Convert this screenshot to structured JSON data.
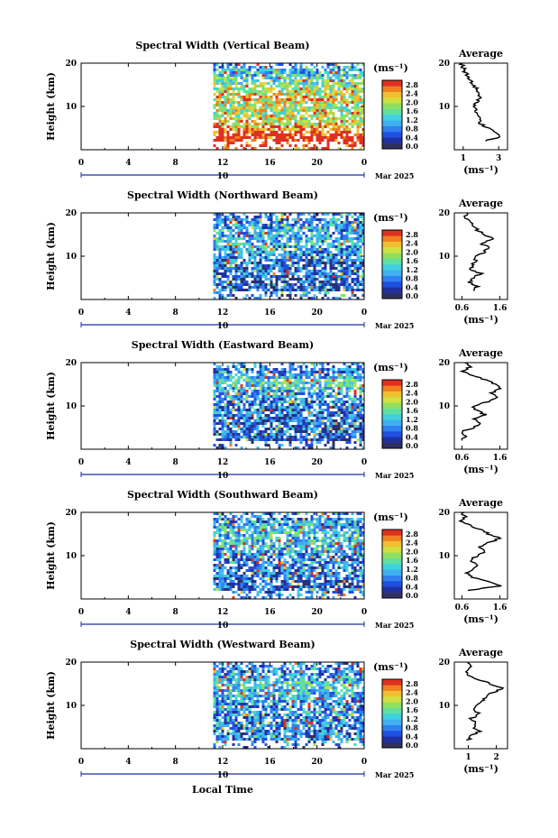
{
  "figure": {
    "xlabel": "Local Time",
    "date_label": "Mar 2025",
    "x_ticks": [
      "0",
      "4",
      "8",
      "12",
      "16",
      "20",
      "0"
    ],
    "day_marker": "10",
    "ylabel": "Height (km)",
    "y_ticks": [
      "10",
      "20"
    ],
    "unit": "(ms⁻¹)",
    "colorbar_ticks": [
      "0.0",
      "0.4",
      "0.8",
      "1.2",
      "1.6",
      "2.0",
      "2.4",
      "2.8"
    ],
    "avg_title": "Average",
    "avg_unit": "(ms⁻¹)"
  },
  "colors": [
    "#303060",
    "#2030a0",
    "#2050e0",
    "#3080f0",
    "#40b0f0",
    "#40d0e0",
    "#60e0a0",
    "#90e060",
    "#d0e040",
    "#f0c030",
    "#f08020",
    "#e03020"
  ],
  "chart_data": [
    {
      "type": "heatmap",
      "title": "Spectral Width (Vertical Beam)",
      "x_range": [
        0,
        24
      ],
      "y_range": [
        0,
        20
      ],
      "data_start_hour": 11.2,
      "colorbar_range": [
        0.0,
        2.8
      ],
      "profile": [
        [
          0,
          2.5
        ],
        [
          2,
          3.2
        ],
        [
          4,
          3.0
        ],
        [
          5,
          2.6
        ],
        [
          6,
          2.2
        ],
        [
          8,
          2.0
        ],
        [
          10,
          1.9
        ],
        [
          12,
          2.2
        ],
        [
          14,
          2.0
        ],
        [
          16,
          1.6
        ],
        [
          18,
          1.3
        ],
        [
          20,
          1.1
        ]
      ],
      "avg_x_ticks": [
        "1",
        "3"
      ],
      "avg_xlim": [
        0.5,
        3.5
      ],
      "avg_profile": [
        [
          2,
          2.2
        ],
        [
          3,
          3.1
        ],
        [
          4,
          2.9
        ],
        [
          5,
          2.4
        ],
        [
          6,
          2.0
        ],
        [
          8,
          1.8
        ],
        [
          10,
          1.6
        ],
        [
          12,
          1.9
        ],
        [
          14,
          1.8
        ],
        [
          15,
          1.5
        ],
        [
          16,
          1.4
        ],
        [
          18,
          1.1
        ],
        [
          19,
          1.0
        ],
        [
          20,
          0.9
        ]
      ]
    },
    {
      "type": "heatmap",
      "title": "Spectral Width (Northward Beam)",
      "x_range": [
        0,
        24
      ],
      "y_range": [
        0,
        20
      ],
      "data_start_hour": 11.2,
      "colorbar_range": [
        0.0,
        2.8
      ],
      "profile": [
        [
          0,
          0.6
        ],
        [
          2,
          0.7
        ],
        [
          4,
          0.6
        ],
        [
          6,
          0.8
        ],
        [
          8,
          0.7
        ],
        [
          10,
          0.8
        ],
        [
          12,
          1.0
        ],
        [
          14,
          1.2
        ],
        [
          16,
          1.1
        ],
        [
          18,
          0.9
        ],
        [
          20,
          0.8
        ]
      ],
      "avg_x_ticks": [
        "0.6",
        "1.6"
      ],
      "avg_xlim": [
        0.4,
        1.8
      ],
      "avg_profile": [
        [
          2,
          0.9
        ],
        [
          3,
          1.0
        ],
        [
          4,
          0.8
        ],
        [
          5,
          0.9
        ],
        [
          6,
          1.1
        ],
        [
          7,
          0.8
        ],
        [
          8,
          0.9
        ],
        [
          10,
          1.0
        ],
        [
          11,
          1.2
        ],
        [
          12,
          1.3
        ],
        [
          13,
          1.1
        ],
        [
          14,
          1.4
        ],
        [
          15,
          1.2
        ],
        [
          16,
          1.0
        ],
        [
          17,
          0.9
        ],
        [
          18,
          0.8
        ],
        [
          19,
          0.7
        ],
        [
          20,
          0.7
        ]
      ]
    },
    {
      "type": "heatmap",
      "title": "Spectral Width (Eastward Beam)",
      "x_range": [
        0,
        24
      ],
      "y_range": [
        0,
        20
      ],
      "data_start_hour": 11.2,
      "colorbar_range": [
        0.0,
        2.8
      ],
      "profile": [
        [
          0,
          0.6
        ],
        [
          2,
          0.5
        ],
        [
          4,
          0.6
        ],
        [
          6,
          0.7
        ],
        [
          8,
          0.8
        ],
        [
          10,
          0.9
        ],
        [
          12,
          1.0
        ],
        [
          14,
          1.3
        ],
        [
          16,
          1.6
        ],
        [
          17,
          1.2
        ],
        [
          18,
          0.9
        ],
        [
          20,
          0.8
        ]
      ],
      "avg_x_ticks": [
        "0.6",
        "1.6"
      ],
      "avg_xlim": [
        0.4,
        1.8
      ],
      "avg_profile": [
        [
          2,
          0.6
        ],
        [
          3,
          0.7
        ],
        [
          4,
          0.6
        ],
        [
          5,
          0.9
        ],
        [
          6,
          1.1
        ],
        [
          7,
          0.9
        ],
        [
          8,
          1.2
        ],
        [
          9,
          1.0
        ],
        [
          10,
          0.9
        ],
        [
          11,
          1.3
        ],
        [
          12,
          1.5
        ],
        [
          13,
          1.4
        ],
        [
          14,
          1.6
        ],
        [
          15,
          1.5
        ],
        [
          16,
          1.2
        ],
        [
          17,
          0.9
        ],
        [
          18,
          0.6
        ],
        [
          19,
          0.8
        ],
        [
          20,
          0.7
        ]
      ]
    },
    {
      "type": "heatmap",
      "title": "Spectral Width (Southward Beam)",
      "x_range": [
        0,
        24
      ],
      "y_range": [
        0,
        20
      ],
      "data_start_hour": 11.2,
      "colorbar_range": [
        0.0,
        2.8
      ],
      "profile": [
        [
          0,
          1.0
        ],
        [
          2,
          0.8
        ],
        [
          4,
          0.7
        ],
        [
          6,
          0.9
        ],
        [
          8,
          0.8
        ],
        [
          10,
          0.9
        ],
        [
          12,
          1.2
        ],
        [
          14,
          1.4
        ],
        [
          16,
          1.3
        ],
        [
          18,
          1.0
        ],
        [
          20,
          0.9
        ]
      ],
      "avg_x_ticks": [
        "0.6",
        "1.6"
      ],
      "avg_xlim": [
        0.4,
        1.8
      ],
      "avg_profile": [
        [
          2,
          0.8
        ],
        [
          3,
          1.6
        ],
        [
          4,
          1.3
        ],
        [
          5,
          0.9
        ],
        [
          6,
          0.7
        ],
        [
          7,
          0.9
        ],
        [
          8,
          1.0
        ],
        [
          9,
          0.8
        ],
        [
          10,
          1.0
        ],
        [
          11,
          1.2
        ],
        [
          12,
          1.1
        ],
        [
          13,
          1.3
        ],
        [
          14,
          1.6
        ],
        [
          15,
          1.3
        ],
        [
          16,
          1.1
        ],
        [
          17,
          0.8
        ],
        [
          18,
          0.6
        ],
        [
          19,
          0.7
        ],
        [
          20,
          0.6
        ]
      ]
    },
    {
      "type": "heatmap",
      "title": "Spectral Width (Westward Beam)",
      "x_range": [
        0,
        24
      ],
      "y_range": [
        0,
        20
      ],
      "data_start_hour": 11.2,
      "colorbar_range": [
        0.0,
        2.8
      ],
      "profile": [
        [
          0,
          0.8
        ],
        [
          2,
          0.9
        ],
        [
          4,
          0.8
        ],
        [
          6,
          0.9
        ],
        [
          8,
          1.0
        ],
        [
          10,
          1.0
        ],
        [
          12,
          1.1
        ],
        [
          14,
          1.3
        ],
        [
          15,
          1.6
        ],
        [
          16,
          1.2
        ],
        [
          18,
          0.9
        ],
        [
          20,
          0.8
        ]
      ],
      "avg_x_ticks": [
        "1",
        "2"
      ],
      "avg_xlim": [
        0.5,
        2.4
      ],
      "avg_profile": [
        [
          2,
          1.0
        ],
        [
          3,
          1.1
        ],
        [
          4,
          1.4
        ],
        [
          5,
          1.2
        ],
        [
          6,
          1.3
        ],
        [
          7,
          1.1
        ],
        [
          8,
          1.4
        ],
        [
          9,
          1.2
        ],
        [
          10,
          1.3
        ],
        [
          11,
          1.5
        ],
        [
          12,
          1.6
        ],
        [
          13,
          1.9
        ],
        [
          14,
          2.2
        ],
        [
          15,
          1.8
        ],
        [
          16,
          1.3
        ],
        [
          17,
          1.0
        ],
        [
          18,
          0.9
        ],
        [
          19,
          1.1
        ],
        [
          20,
          0.9
        ]
      ]
    }
  ]
}
